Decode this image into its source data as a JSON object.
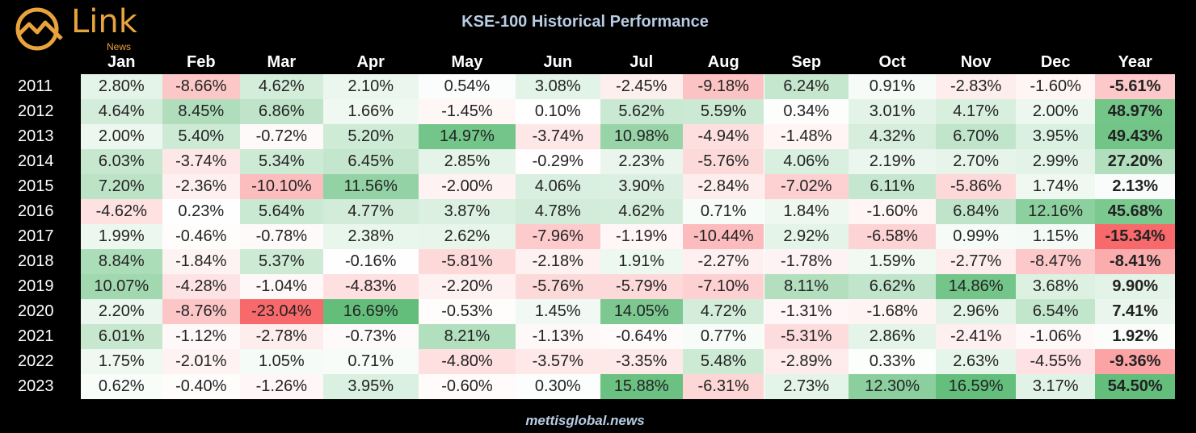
{
  "logo": {
    "word": "Link",
    "sub": "News",
    "icon": "chart-circle-icon",
    "color": "#e8a33c"
  },
  "title": "KSE-100 Historical Performance",
  "footer": "mettisglobal.news",
  "chart_data": {
    "type": "table",
    "title": "KSE-100 Historical Performance",
    "columns": [
      "Jan",
      "Feb",
      "Mar",
      "Apr",
      "May",
      "Jun",
      "Jul",
      "Aug",
      "Sep",
      "Oct",
      "Nov",
      "Dec",
      "Year"
    ],
    "rows": [
      {
        "year": "2011",
        "values": [
          "2.80%",
          "-8.66%",
          "4.62%",
          "2.10%",
          "0.54%",
          "3.08%",
          "-2.45%",
          "-9.18%",
          "6.24%",
          "0.91%",
          "-2.83%",
          "-1.60%",
          "-5.61%"
        ]
      },
      {
        "year": "2012",
        "values": [
          "4.64%",
          "8.45%",
          "6.86%",
          "1.66%",
          "-1.45%",
          "0.10%",
          "5.62%",
          "5.59%",
          "0.34%",
          "3.01%",
          "4.17%",
          "2.00%",
          "48.97%"
        ]
      },
      {
        "year": "2013",
        "values": [
          "2.00%",
          "5.40%",
          "-0.72%",
          "5.20%",
          "14.97%",
          "-3.74%",
          "10.98%",
          "-4.94%",
          "-1.48%",
          "4.32%",
          "6.70%",
          "3.95%",
          "49.43%"
        ]
      },
      {
        "year": "2014",
        "values": [
          "6.03%",
          "-3.74%",
          "5.34%",
          "6.45%",
          "2.85%",
          "-0.29%",
          "2.23%",
          "-5.76%",
          "4.06%",
          "2.19%",
          "2.70%",
          "2.99%",
          "27.20%"
        ]
      },
      {
        "year": "2015",
        "values": [
          "7.20%",
          "-2.36%",
          "-10.10%",
          "11.56%",
          "-2.00%",
          "4.06%",
          "3.90%",
          "-2.84%",
          "-7.02%",
          "6.11%",
          "-5.86%",
          "1.74%",
          "2.13%"
        ]
      },
      {
        "year": "2016",
        "values": [
          "-4.62%",
          "0.23%",
          "5.64%",
          "4.77%",
          "3.87%",
          "4.78%",
          "4.62%",
          "0.71%",
          "1.84%",
          "-1.60%",
          "6.84%",
          "12.16%",
          "45.68%"
        ]
      },
      {
        "year": "2017",
        "values": [
          "1.99%",
          "-0.46%",
          "-0.78%",
          "2.38%",
          "2.62%",
          "-7.96%",
          "-1.19%",
          "-10.44%",
          "2.92%",
          "-6.58%",
          "0.99%",
          "1.15%",
          "-15.34%"
        ]
      },
      {
        "year": "2018",
        "values": [
          "8.84%",
          "-1.84%",
          "5.37%",
          "-0.16%",
          "-5.81%",
          "-2.18%",
          "1.91%",
          "-2.27%",
          "-1.78%",
          "1.59%",
          "-2.77%",
          "-8.47%",
          "-8.41%"
        ]
      },
      {
        "year": "2019",
        "values": [
          "10.07%",
          "-4.28%",
          "-1.04%",
          "-4.83%",
          "-2.20%",
          "-5.76%",
          "-5.79%",
          "-7.10%",
          "8.11%",
          "6.62%",
          "14.86%",
          "3.68%",
          "9.90%"
        ]
      },
      {
        "year": "2020",
        "values": [
          "2.20%",
          "-8.76%",
          "-23.04%",
          "16.69%",
          "-0.53%",
          "1.45%",
          "14.05%",
          "4.72%",
          "-1.31%",
          "-1.68%",
          "2.96%",
          "6.54%",
          "7.41%"
        ]
      },
      {
        "year": "2021",
        "values": [
          "6.01%",
          "-1.12%",
          "-2.78%",
          "-0.73%",
          "8.21%",
          "-1.13%",
          "-0.64%",
          "0.77%",
          "-5.31%",
          "2.86%",
          "-2.41%",
          "-1.06%",
          "1.92%"
        ]
      },
      {
        "year": "2022",
        "values": [
          "1.75%",
          "-2.01%",
          "1.05%",
          "0.71%",
          "-4.80%",
          "-3.57%",
          "-3.35%",
          "5.48%",
          "-2.89%",
          "0.33%",
          "2.63%",
          "-4.55%",
          "-9.36%"
        ]
      },
      {
        "year": "2023",
        "values": [
          "0.62%",
          "-0.40%",
          "-1.26%",
          "3.95%",
          "-0.60%",
          "0.30%",
          "15.88%",
          "-6.31%",
          "2.73%",
          "12.30%",
          "16.59%",
          "3.17%",
          "54.50%"
        ]
      }
    ],
    "color_scale": {
      "negative": "#f8696b",
      "zero": "#ffffff",
      "positive": "#63be7b"
    }
  }
}
